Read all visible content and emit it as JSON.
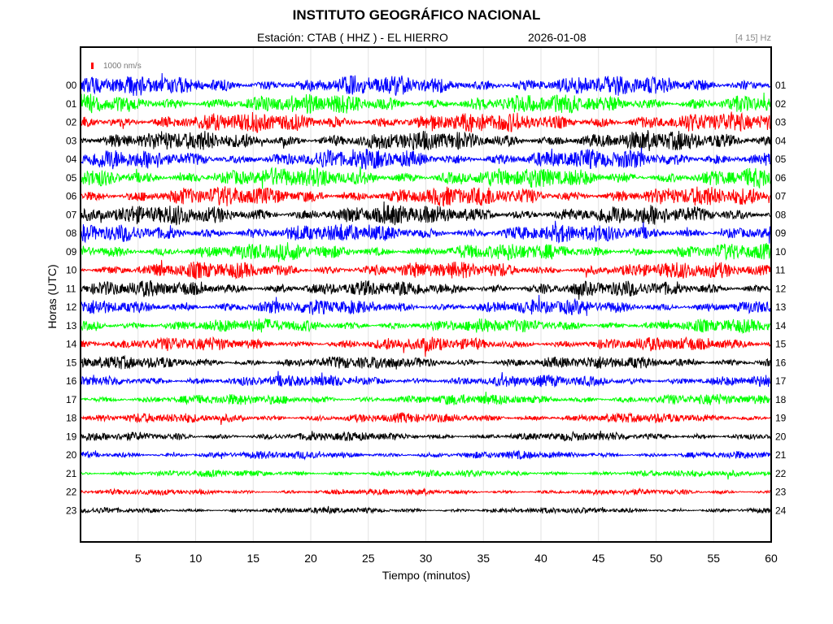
{
  "header": {
    "title": "INSTITUTO GEOGRÁFICO NACIONAL",
    "station_label": "Estación:  CTAB ( HHZ ) - EL HIERRO",
    "date": "2026-01-08",
    "filter": "[4 15] Hz"
  },
  "chart_data": {
    "type": "line",
    "title": "INSTITUTO GEOGRÁFICO NACIONAL",
    "xlabel": "Tiempo (minutos)",
    "ylabel": "Horas (UTC)",
    "xlim": [
      0,
      60
    ],
    "x_ticks": [
      5,
      10,
      15,
      20,
      25,
      30,
      35,
      40,
      45,
      50,
      55,
      60
    ],
    "grid": true,
    "scale_bar": {
      "label": "1000 nm/s",
      "color": "#ff0000"
    },
    "left_hour_labels": [
      "00",
      "01",
      "02",
      "03",
      "04",
      "05",
      "06",
      "07",
      "08",
      "09",
      "10",
      "11",
      "12",
      "13",
      "14",
      "15",
      "16",
      "17",
      "18",
      "19",
      "20",
      "21",
      "22",
      "23"
    ],
    "right_hour_labels": [
      "01",
      "02",
      "03",
      "04",
      "05",
      "06",
      "07",
      "08",
      "09",
      "10",
      "11",
      "12",
      "13",
      "14",
      "15",
      "16",
      "17",
      "18",
      "19",
      "20",
      "21",
      "22",
      "23",
      "24"
    ],
    "trace_colors": [
      "#0000ff",
      "#00ff00",
      "#ff0000",
      "#000000"
    ],
    "trace_amplitude_level": [
      1.0,
      1.0,
      1.0,
      1.0,
      1.0,
      1.0,
      1.0,
      1.0,
      0.9,
      0.85,
      0.85,
      0.8,
      0.75,
      0.7,
      0.7,
      0.65,
      0.6,
      0.55,
      0.5,
      0.45,
      0.4,
      0.35,
      0.3,
      0.3
    ]
  }
}
